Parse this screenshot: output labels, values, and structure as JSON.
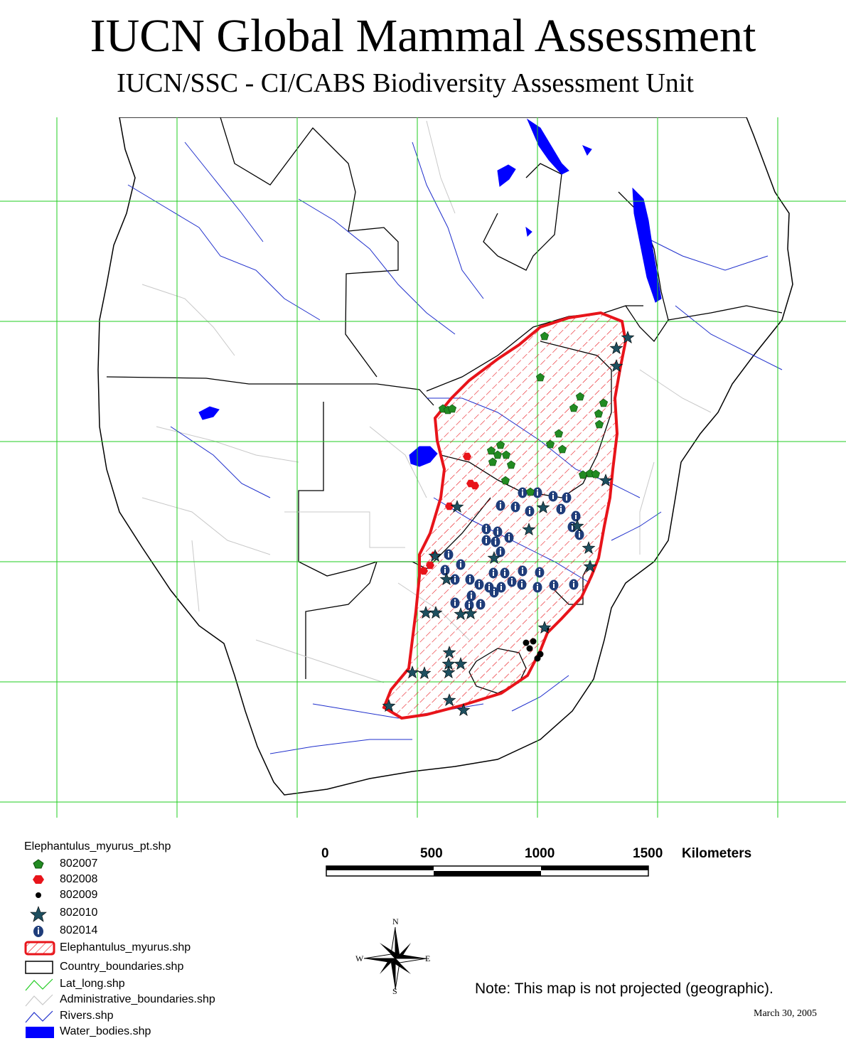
{
  "title": "IUCN Global Mammal Assessment",
  "subtitle": "IUCN/SSC - CI/CABS Biodiversity Assessment Unit",
  "legend": {
    "title": "Elephantulus_myurus_pt.shp",
    "items": [
      {
        "label": "802007",
        "symbol": "pentagon",
        "color": "#228B22"
      },
      {
        "label": "802008",
        "symbol": "hexagon",
        "color": "#E8141A"
      },
      {
        "label": "802009",
        "symbol": "circle",
        "color": "#000000"
      },
      {
        "label": "802010",
        "symbol": "star",
        "color": "#1E4F5F"
      },
      {
        "label": "802014",
        "symbol": "info-circle",
        "color": "#1F3D7A"
      },
      {
        "label": "Elephantulus_myurus.shp",
        "symbol": "hatched-polygon",
        "color": "#E8141A"
      },
      {
        "label": "Country_boundaries.shp",
        "symbol": "outline-box",
        "color": "#000000"
      },
      {
        "label": "Lat_long.shp",
        "symbol": "line",
        "color": "#22CC22"
      },
      {
        "label": "Administrative_boundaries.shp",
        "symbol": "line",
        "color": "#C0C0C0"
      },
      {
        "label": "Rivers.shp",
        "symbol": "line",
        "color": "#1F2FCC"
      },
      {
        "label": "Water_bodies.shp",
        "symbol": "filled-box",
        "color": "#0000FF"
      }
    ]
  },
  "scale_bar": {
    "ticks": [
      "0",
      "500",
      "1000",
      "1500"
    ],
    "unit": "Kilometers"
  },
  "compass": {
    "n": "N",
    "s": "S",
    "e": "E",
    "w": "W"
  },
  "note": "Note: This map is not projected (geographic).",
  "date": "March 30, 2005",
  "colors": {
    "grid": "#22CC22",
    "range_outline": "#E8141A",
    "rivers": "#1F2FCC",
    "water": "#0000FF",
    "admin": "#C8C8C8"
  },
  "records": {
    "802007": [
      [
        766,
        473
      ],
      [
        760,
        531
      ],
      [
        816,
        558
      ],
      [
        807,
        574
      ],
      [
        849,
        567
      ],
      [
        842,
        582
      ],
      [
        843,
        597
      ],
      [
        786,
        610
      ],
      [
        774,
        625
      ],
      [
        791,
        632
      ],
      [
        623,
        575
      ],
      [
        630,
        577
      ],
      [
        636,
        575
      ],
      [
        691,
        634
      ],
      [
        704,
        626
      ],
      [
        712,
        640
      ],
      [
        700,
        640
      ],
      [
        693,
        650
      ],
      [
        719,
        654
      ],
      [
        711,
        676
      ],
      [
        746,
        692
      ],
      [
        820,
        668
      ],
      [
        830,
        666
      ],
      [
        838,
        667
      ]
    ],
    "802008": [
      [
        657,
        642
      ],
      [
        662,
        680
      ],
      [
        668,
        683
      ],
      [
        632,
        712
      ],
      [
        611,
        781
      ],
      [
        605,
        795
      ],
      [
        596,
        803
      ]
    ],
    "802009": [
      [
        740,
        904
      ],
      [
        745,
        912
      ],
      [
        750,
        902
      ],
      [
        760,
        920
      ],
      [
        756,
        926
      ],
      [
        768,
        884
      ]
    ],
    "802010": [
      [
        883,
        475
      ],
      [
        867,
        490
      ],
      [
        867,
        515
      ],
      [
        852,
        676
      ],
      [
        643,
        713
      ],
      [
        764,
        714
      ],
      [
        744,
        745
      ],
      [
        812,
        740
      ],
      [
        828,
        771
      ],
      [
        830,
        797
      ],
      [
        612,
        782
      ],
      [
        628,
        815
      ],
      [
        695,
        785
      ],
      [
        599,
        862
      ],
      [
        613,
        862
      ],
      [
        648,
        864
      ],
      [
        662,
        863
      ],
      [
        766,
        883
      ],
      [
        632,
        918
      ],
      [
        631,
        934
      ],
      [
        648,
        934
      ],
      [
        631,
        946
      ],
      [
        580,
        946
      ],
      [
        597,
        947
      ],
      [
        547,
        993
      ],
      [
        632,
        985
      ],
      [
        652,
        999
      ]
    ],
    "802014": [
      [
        735,
        693
      ],
      [
        756,
        693
      ],
      [
        778,
        698
      ],
      [
        797,
        700
      ],
      [
        704,
        711
      ],
      [
        725,
        713
      ],
      [
        745,
        719
      ],
      [
        789,
        716
      ],
      [
        684,
        744
      ],
      [
        700,
        748
      ],
      [
        716,
        756
      ],
      [
        684,
        760
      ],
      [
        697,
        762
      ],
      [
        704,
        776
      ],
      [
        631,
        780
      ],
      [
        648,
        794
      ],
      [
        626,
        802
      ],
      [
        640,
        815
      ],
      [
        661,
        815
      ],
      [
        694,
        806
      ],
      [
        710,
        806
      ],
      [
        735,
        803
      ],
      [
        759,
        805
      ],
      [
        674,
        822
      ],
      [
        688,
        826
      ],
      [
        705,
        826
      ],
      [
        720,
        818
      ],
      [
        734,
        822
      ],
      [
        756,
        826
      ],
      [
        779,
        823
      ],
      [
        807,
        822
      ],
      [
        663,
        838
      ],
      [
        695,
        833
      ],
      [
        660,
        851
      ],
      [
        676,
        850
      ],
      [
        640,
        848
      ],
      [
        810,
        726
      ],
      [
        805,
        741
      ],
      [
        815,
        752
      ]
    ]
  }
}
